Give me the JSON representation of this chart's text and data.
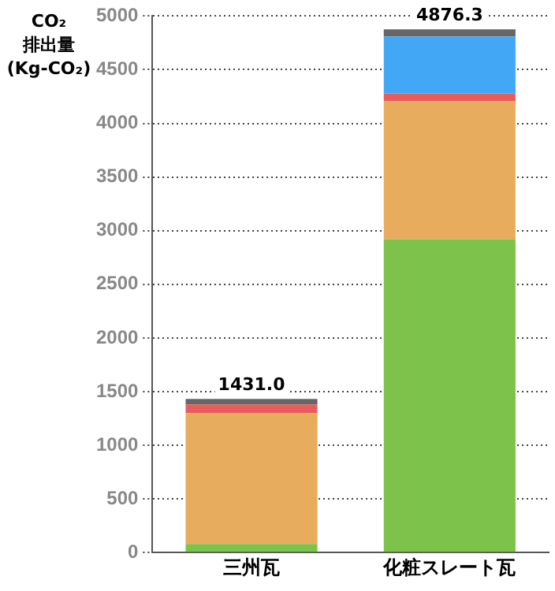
{
  "chart_data": {
    "type": "bar",
    "stacked": true,
    "ylabel": "CO₂\n排出量\n(Kg-CO₂)",
    "categories": [
      "三州瓦",
      "化粧スレート瓦"
    ],
    "series": [
      {
        "color": "#7dc24b",
        "values": [
          80,
          2920
        ]
      },
      {
        "color": "#e8ac5e",
        "values": [
          1220,
          1290
        ]
      },
      {
        "color": "#e85c5c",
        "values": [
          80,
          70
        ]
      },
      {
        "color": "#42a8f5",
        "values": [
          0,
          530
        ]
      },
      {
        "color": "#666666",
        "values": [
          51,
          66.3
        ]
      }
    ],
    "totals": [
      "1431.0",
      "4876.3"
    ],
    "ylim": [
      0,
      5000
    ],
    "yticks": [
      0,
      500,
      1000,
      1500,
      2000,
      2500,
      3000,
      3500,
      4000,
      4500,
      5000
    ],
    "grid": "y",
    "legend": false
  }
}
